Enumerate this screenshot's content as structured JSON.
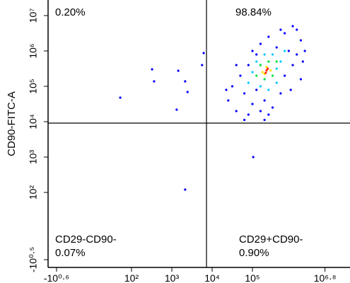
{
  "chart_data": {
    "type": "scatter",
    "y_label": "CD90-FITC-A",
    "xlim": [
      -0.07,
      7.42
    ],
    "ylim": [
      -0.12,
      7.44
    ],
    "xticks": [
      {
        "value": 0.14,
        "label": "-10⁰·⁶"
      },
      {
        "value": 2,
        "label": "10²"
      },
      {
        "value": 3,
        "label": "10³"
      },
      {
        "value": 4,
        "label": "10⁴"
      },
      {
        "value": 5,
        "label": "10⁵"
      },
      {
        "value": 6.8,
        "label": "10⁶·⁸"
      }
    ],
    "yticks": [
      {
        "value": 0.1,
        "label": "-10⁰·⁵"
      },
      {
        "value": 2,
        "label": "10²"
      },
      {
        "value": 3,
        "label": "10³"
      },
      {
        "value": 4,
        "label": "10⁴"
      },
      {
        "value": 5,
        "label": "10⁵"
      },
      {
        "value": 6,
        "label": "10⁶"
      },
      {
        "value": 7,
        "label": "10⁷"
      }
    ],
    "gates": {
      "x": 3.86,
      "y": 3.96
    },
    "annotations": [
      "0.20%",
      "98.84%",
      "CD29-CD90-",
      "0.07%",
      "CD29+CD90-",
      "0.90%"
    ],
    "series": [
      {
        "color": "#0000ff",
        "x": [
          2.51,
          2.56,
          3.16,
          3.33,
          3.12,
          1.72,
          3.79,
          3.75,
          5.02,
          3.33,
          3.39,
          4.4,
          4.5,
          4.6,
          4.7,
          4.8,
          4.9,
          4.9,
          5.0,
          5.0,
          5.1,
          5.1,
          5.2,
          5.2,
          5.3,
          5.4,
          5.5,
          5.6,
          5.7,
          5.8,
          5.8,
          5.9,
          6.0,
          6.0,
          6.1,
          6.2,
          6.2,
          5.4,
          4.6,
          5.7,
          6.3,
          4.35,
          5.95,
          6.1,
          5.3,
          4.8,
          6.25
        ],
        "y": [
          5.48,
          5.14,
          5.44,
          5.14,
          4.34,
          4.68,
          5.94,
          5.6,
          3.0,
          2.08,
          4.84,
          4.6,
          5.0,
          4.3,
          5.3,
          4.8,
          4.2,
          5.6,
          4.5,
          6.0,
          4.9,
          5.9,
          4.3,
          6.2,
          4.6,
          6.4,
          4.4,
          6.1,
          4.8,
          6.5,
          5.3,
          6.0,
          5.6,
          6.7,
          5.9,
          6.3,
          5.2,
          4.2,
          5.6,
          6.6,
          6.0,
          4.9,
          4.9,
          6.6,
          4.05,
          4.05,
          5.7
        ]
      },
      {
        "color": "#00c8ff",
        "x": [
          4.9,
          5.0,
          5.1,
          5.2,
          5.3,
          5.4,
          5.5,
          5.6,
          5.7,
          5.8,
          5.2,
          5.6
        ],
        "y": [
          5.1,
          5.4,
          5.7,
          5.0,
          5.9,
          4.9,
          5.9,
          5.1,
          5.7,
          6.0,
          5.6,
          5.5
        ]
      },
      {
        "color": "#00e040",
        "x": [
          5.1,
          5.2,
          5.3,
          5.4,
          5.5,
          5.6
        ],
        "y": [
          5.3,
          5.6,
          5.2,
          5.7,
          5.3,
          5.7
        ]
      },
      {
        "color": "#ffe000",
        "x": [
          5.25,
          5.35,
          5.45,
          5.3
        ],
        "y": [
          5.4,
          5.55,
          5.45,
          5.35
        ]
      },
      {
        "color": "#ff2000",
        "x": [
          5.35,
          5.38,
          5.33
        ],
        "y": [
          5.45,
          5.5,
          5.38
        ]
      }
    ]
  }
}
